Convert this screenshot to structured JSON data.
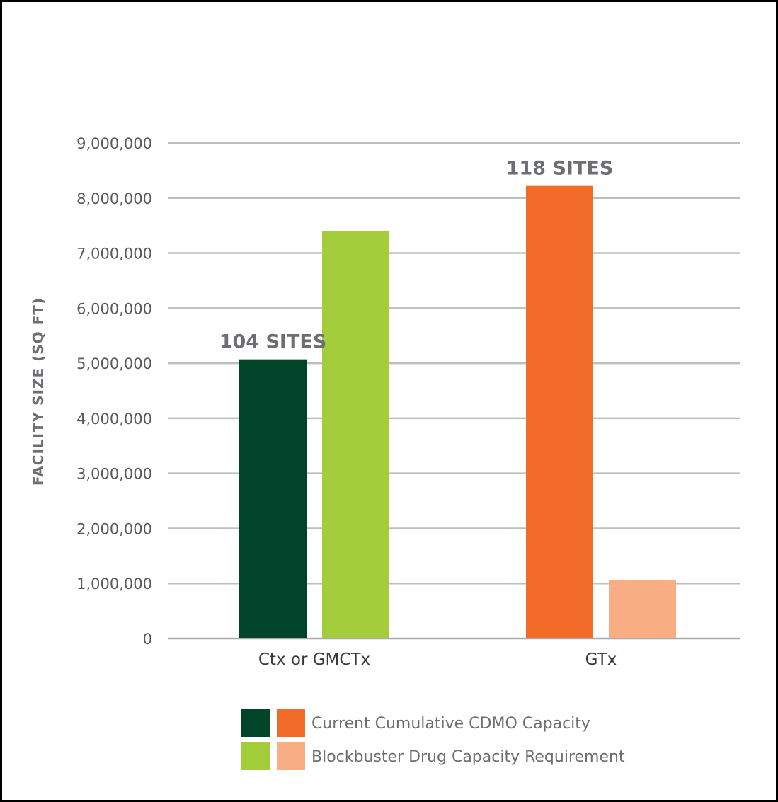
{
  "chart_data": {
    "type": "bar",
    "categories": [
      "Ctx or GMCTx",
      "GTx"
    ],
    "series": [
      {
        "name": "Current Cumulative CDMO Capacity",
        "values": [
          5070000,
          8220000
        ],
        "colors": [
          "#00452a",
          "#f26b28"
        ]
      },
      {
        "name": "Blockbuster Drug Capacity Requirement",
        "values": [
          7400000,
          1060000
        ],
        "colors": [
          "#a4cd3c",
          "#f9ad83"
        ]
      }
    ],
    "annotations": [
      {
        "category": "Ctx or GMCTx",
        "text": "104 SITES"
      },
      {
        "category": "GTx",
        "text": "118 SITES"
      }
    ],
    "ylabel": "FACILITY SIZE (SQ FT)",
    "xlabel": "",
    "ylim": [
      0,
      9000000
    ],
    "yticks": [
      {
        "value": 0,
        "label": "0"
      },
      {
        "value": 1000000,
        "label": "1,000,000"
      },
      {
        "value": 2000000,
        "label": "2,000,000"
      },
      {
        "value": 3000000,
        "label": "3,000,000"
      },
      {
        "value": 4000000,
        "label": "4,000,000"
      },
      {
        "value": 5000000,
        "label": "5,000,000"
      },
      {
        "value": 6000000,
        "label": "6,000,000"
      },
      {
        "value": 7000000,
        "label": "7,000,000"
      },
      {
        "value": 8000000,
        "label": "8,000,000"
      },
      {
        "value": 9000000,
        "label": "9,000,000"
      }
    ],
    "grid": true,
    "legend_position": "bottom"
  }
}
